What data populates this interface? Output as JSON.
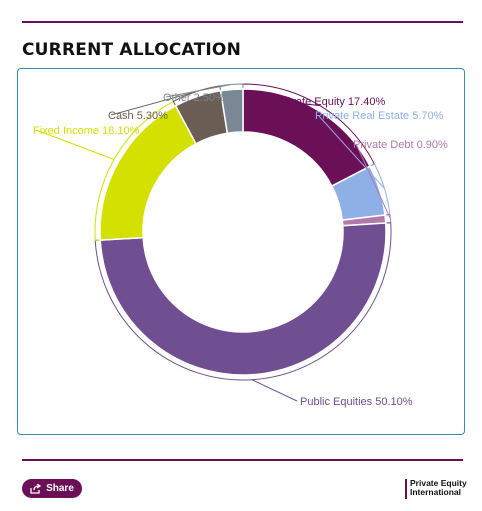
{
  "header": {
    "title": "CURRENT ALLOCATION"
  },
  "footer": {
    "share_label": "Share",
    "logo_line1": "Private Equity",
    "logo_line2": "International"
  },
  "colors": {
    "accent": "#6b0f57",
    "card_border": "#2f8fb5"
  },
  "chart_data": {
    "type": "pie",
    "donut": true,
    "title": "CURRENT ALLOCATION",
    "slices": [
      {
        "label": "Private Equity",
        "value": 17.4,
        "display": "Private Equity 17.40%",
        "color": "#6b0f57"
      },
      {
        "label": "Private Real Estate",
        "value": 5.7,
        "display": "Private Real Estate 5.70%",
        "color": "#8fb0e6"
      },
      {
        "label": "Private Debt",
        "value": 0.9,
        "display": "Private Debt 0.90%",
        "color": "#b07aab"
      },
      {
        "label": "Public Equities",
        "value": 50.1,
        "display": "Public Equities 50.10%",
        "color": "#6f4f91"
      },
      {
        "label": "Fixed Income",
        "value": 18.1,
        "display": "Fixed Income 18.10%",
        "color": "#d4e000"
      },
      {
        "label": "Cash",
        "value": 5.3,
        "display": "Cash 5.30%",
        "color": "#6b5d54"
      },
      {
        "label": "Other",
        "value": 2.5,
        "display": "Other 2.50%",
        "color": "#7a8896"
      }
    ],
    "legend": "none"
  }
}
